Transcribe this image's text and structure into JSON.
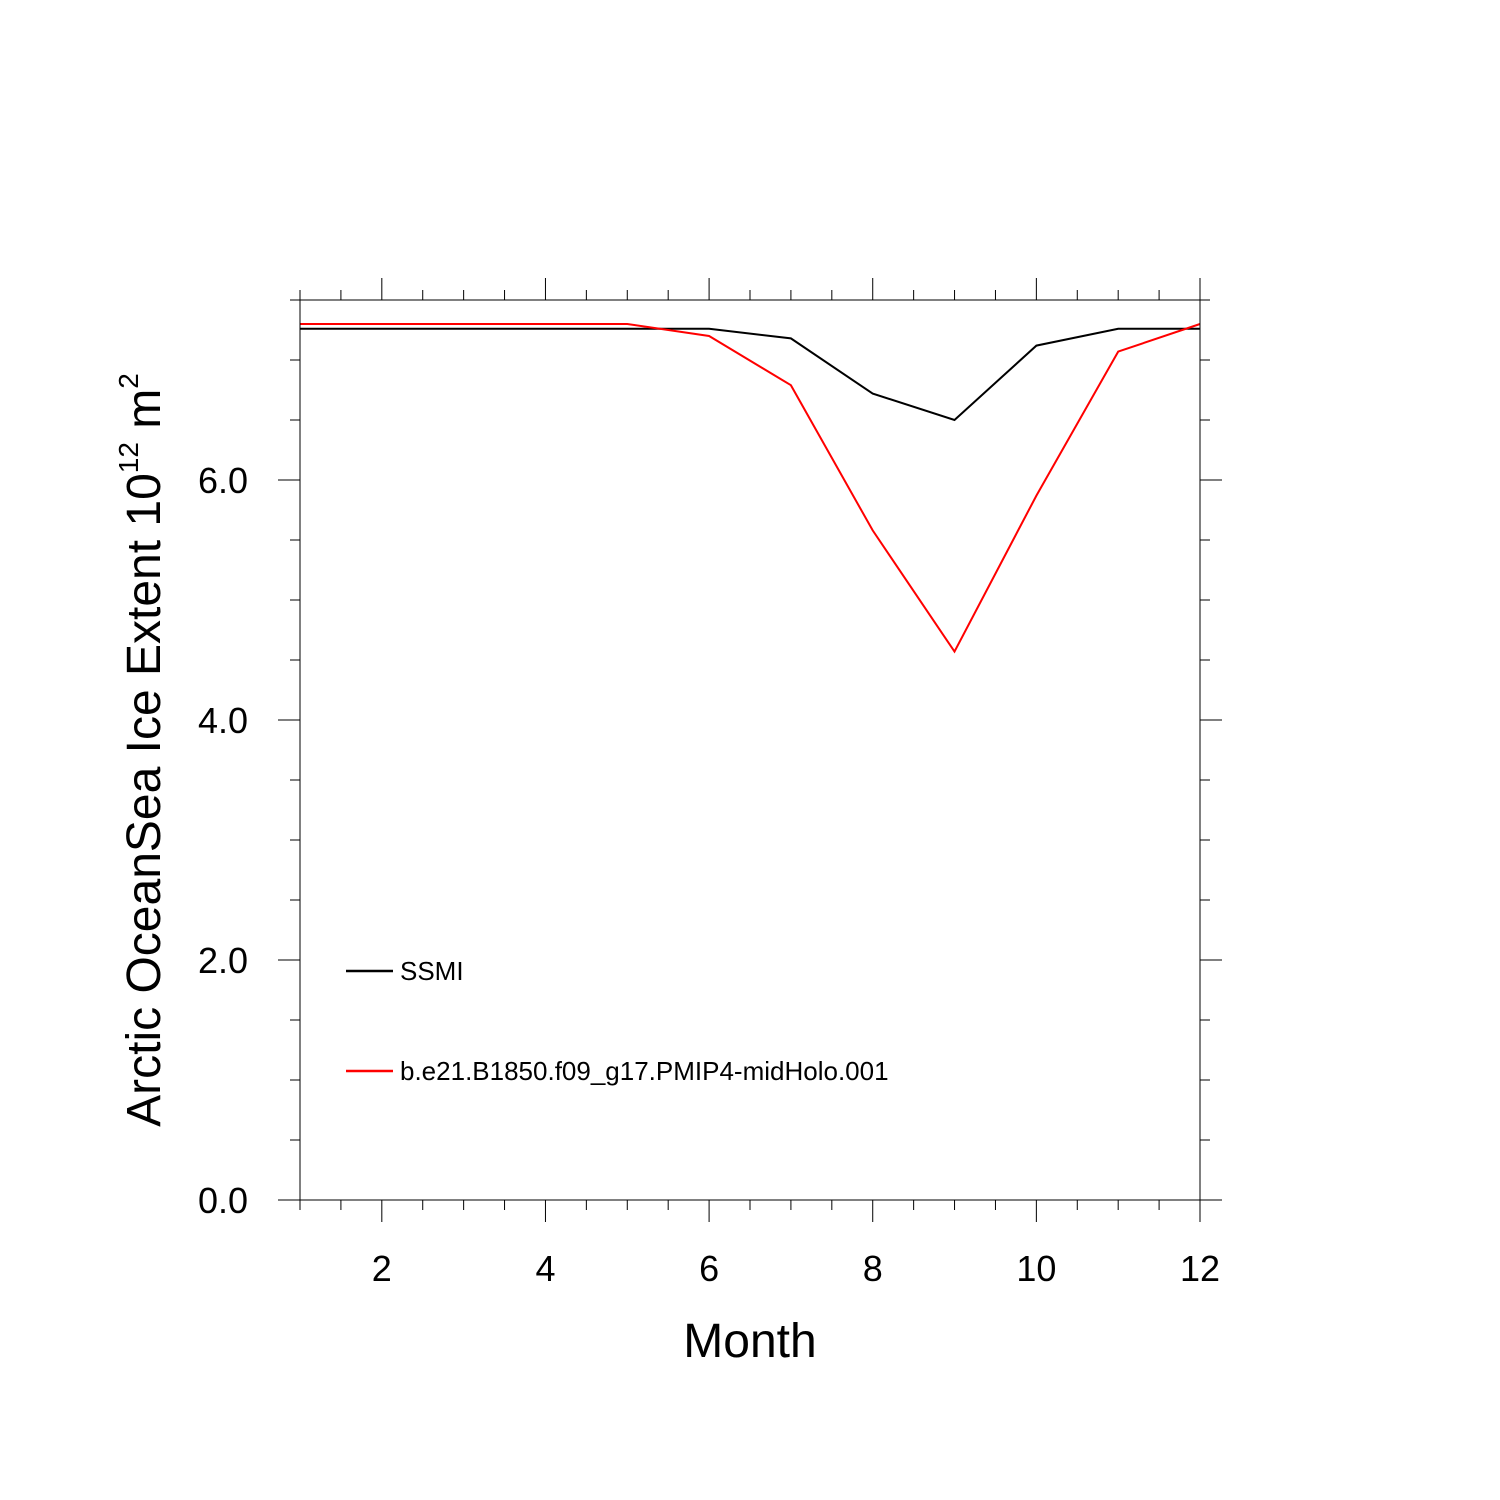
{
  "chart_data": {
    "type": "line",
    "xlabel": "Month",
    "ylabel": "Arctic OceanSea Ice Extent 10",
    "ylabel_exponent": "12",
    "ylabel_unit": " m",
    "ylabel_unit_exponent": "2",
    "xlim": [
      1,
      12
    ],
    "ylim": [
      0,
      7.5
    ],
    "x_ticks": [
      2,
      4,
      6,
      8,
      10,
      12
    ],
    "x_tick_labels": [
      "2",
      "4",
      "6",
      "8",
      "10",
      "12"
    ],
    "y_ticks": [
      0,
      2,
      4,
      6
    ],
    "y_tick_labels": [
      "0.0",
      "2.0",
      "4.0",
      "6.0"
    ],
    "legend_position": "bottom-left",
    "x": [
      1,
      2,
      3,
      4,
      5,
      6,
      7,
      8,
      9,
      10,
      11,
      12
    ],
    "series": [
      {
        "name": "SSMI",
        "color": "#000000",
        "values": [
          7.26,
          7.26,
          7.26,
          7.26,
          7.26,
          7.26,
          7.18,
          6.72,
          6.5,
          7.12,
          7.26,
          7.26
        ]
      },
      {
        "name": "b.e21.B1850.f09_g17.PMIP4-midHolo.001",
        "color": "#ff0000",
        "values": [
          7.3,
          7.3,
          7.3,
          7.3,
          7.3,
          7.2,
          6.79,
          5.58,
          4.57,
          5.87,
          7.07,
          7.3
        ]
      }
    ]
  }
}
